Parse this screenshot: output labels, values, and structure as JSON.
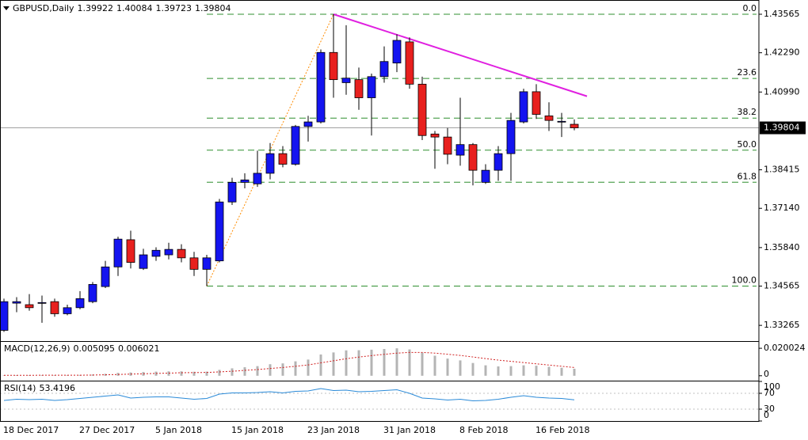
{
  "chart_data": [
    {
      "type": "candlestick",
      "title": "GBPUSD,Daily",
      "categories": [
        "18 Dec 2017",
        null,
        null,
        null,
        null,
        null,
        "27 Dec 2017",
        null,
        null,
        null,
        null,
        null,
        "5 Jan 2018",
        null,
        null,
        null,
        null,
        null,
        "15 Jan 2018",
        null,
        null,
        null,
        null,
        null,
        "23 Jan 2018",
        null,
        null,
        null,
        null,
        null,
        "31 Jan 2018",
        null,
        null,
        null,
        null,
        null,
        "8 Feb 2018",
        null,
        null,
        null,
        null,
        null,
        "16 Feb 2018",
        null,
        null,
        null
      ],
      "open": [
        1.331,
        1.34,
        1.3395,
        1.34,
        1.3405,
        1.3365,
        1.3385,
        1.3405,
        1.3455,
        1.352,
        1.361,
        1.3515,
        1.3555,
        1.356,
        1.3578,
        1.355,
        1.3512,
        1.354,
        1.3735,
        1.38,
        1.3795,
        1.383,
        1.3895,
        1.386,
        1.3985,
        1.4,
        1.423,
        1.413,
        1.414,
        1.408,
        1.415,
        1.4195,
        1.4265,
        1.4125,
        1.396,
        1.395,
        1.389,
        1.3925,
        1.38,
        1.384,
        1.3895,
        1.4,
        1.41,
        1.402,
        1.4,
        1.39922
      ],
      "high": [
        1.3415,
        1.342,
        1.343,
        1.3425,
        1.3415,
        1.3395,
        1.344,
        1.347,
        1.354,
        1.362,
        1.364,
        1.358,
        1.3585,
        1.36,
        1.3595,
        1.357,
        1.356,
        1.3745,
        1.3815,
        1.383,
        1.3905,
        1.393,
        1.392,
        1.399,
        1.402,
        1.424,
        1.43565,
        1.432,
        1.418,
        1.416,
        1.425,
        1.429,
        1.428,
        1.415,
        1.397,
        1.398,
        1.408,
        1.393,
        1.386,
        1.392,
        1.403,
        1.411,
        1.4125,
        1.4065,
        1.403,
        1.40084
      ],
      "low": [
        1.3305,
        1.337,
        1.3375,
        1.3335,
        1.3355,
        1.336,
        1.338,
        1.34,
        1.345,
        1.349,
        1.3515,
        1.351,
        1.354,
        1.3545,
        1.3535,
        1.349,
        1.34565,
        1.3535,
        1.3725,
        1.378,
        1.3785,
        1.381,
        1.385,
        1.3855,
        1.3935,
        1.3995,
        1.408,
        1.409,
        1.404,
        1.3955,
        1.413,
        1.4165,
        1.411,
        1.394,
        1.3845,
        1.386,
        1.3855,
        1.379,
        1.3795,
        1.3805,
        1.3805,
        1.3995,
        1.401,
        1.397,
        1.395,
        1.39723
      ],
      "close": [
        1.3405,
        1.3405,
        1.3385,
        1.3402,
        1.3365,
        1.3385,
        1.3415,
        1.3462,
        1.352,
        1.3612,
        1.3535,
        1.356,
        1.3575,
        1.3578,
        1.355,
        1.3512,
        1.355,
        1.3735,
        1.38,
        1.3808,
        1.383,
        1.3895,
        1.386,
        1.3985,
        1.4,
        1.423,
        1.414,
        1.4145,
        1.408,
        1.415,
        1.42,
        1.427,
        1.4125,
        1.3955,
        1.395,
        1.3893,
        1.3925,
        1.384,
        1.384,
        1.3895,
        1.4005,
        1.41,
        1.4025,
        1.4005,
        1.4002,
        1.39804
      ],
      "up_color": "#1414f0",
      "down_color": "#e8201e",
      "ylim": [
        1.32771,
        1.43984
      ],
      "yticks": [
        1.43565,
        {
          "value": 1.4229,
          "label": "1.42290"
        },
        {
          "value": 1.4099,
          "label": "1.40990"
        },
        1.38415,
        {
          "value": 1.3714,
          "label": "1.37140"
        },
        {
          "value": 1.3584,
          "label": "1.35840"
        },
        1.34565,
        1.33265
      ],
      "fibonacci": {
        "color": "#2f8f2f",
        "levels": [
          {
            "value": 1.43565,
            "label": "0.0"
          },
          {
            "value": 1.41441,
            "label": "23.6"
          },
          {
            "value": 1.40127,
            "label": "38.2"
          },
          {
            "value": 1.39065,
            "label": "50.0"
          },
          {
            "value": 1.38003,
            "label": "61.8"
          },
          {
            "value": 1.34565,
            "label": "100.0"
          }
        ]
      },
      "lines": [
        {
          "color": "#ff8c00",
          "style": "dotted",
          "x": [
            16,
            26
          ],
          "y": [
            1.34565,
            1.43565
          ]
        },
        {
          "color": "#e020e0",
          "style": "solid",
          "x": [
            26,
            46
          ],
          "y": [
            1.43565,
            1.4085
          ]
        }
      ]
    },
    {
      "type": "macd",
      "title": "MACD(12,26,9)",
      "series": [
        {
          "style": "bar",
          "color": "#b4b4b4",
          "values": [
            0.0003,
            0.0004,
            0.0004,
            0.0005,
            0.0004,
            0.0004,
            0.0006,
            0.0009,
            0.0014,
            0.0021,
            0.0024,
            0.0027,
            0.003,
            0.0032,
            0.0032,
            0.0029,
            0.003,
            0.0043,
            0.0054,
            0.0062,
            0.007,
            0.0084,
            0.009,
            0.0105,
            0.0118,
            0.0155,
            0.017,
            0.0185,
            0.0186,
            0.019,
            0.0195,
            0.02,
            0.0192,
            0.0168,
            0.0146,
            0.0125,
            0.0112,
            0.0093,
            0.0076,
            0.0068,
            0.007,
            0.0076,
            0.0073,
            0.0065,
            0.0058,
            0.005095
          ]
        },
        {
          "style": "dotted",
          "color": "#d02020",
          "values": [
            0.0003,
            0.0003,
            0.0003,
            0.0004,
            0.0004,
            0.0004,
            0.0004,
            0.0005,
            0.0007,
            0.0009,
            0.0012,
            0.0014,
            0.0017,
            0.0019,
            0.0022,
            0.0023,
            0.0024,
            0.0028,
            0.0033,
            0.0039,
            0.0045,
            0.0053,
            0.006,
            0.0069,
            0.0079,
            0.0094,
            0.0109,
            0.0124,
            0.0136,
            0.0147,
            0.0156,
            0.0165,
            0.017,
            0.017,
            0.0165,
            0.0157,
            0.0148,
            0.0137,
            0.0125,
            0.0114,
            0.0105,
            0.0096,
            0.0087,
            0.0078,
            0.0069,
            0.006021
          ]
        }
      ],
      "ylim": [
        -0.003,
        0.0247
      ],
      "yticks": [
        0.020024,
        0
      ]
    },
    {
      "type": "line",
      "title": "RSI(14)",
      "series": [
        {
          "style": "solid",
          "color": "#2a8ad8",
          "values": [
            52,
            55,
            54,
            55,
            52,
            54,
            57,
            60,
            63,
            66,
            58,
            60,
            61,
            61,
            58,
            55,
            57,
            68,
            71,
            71,
            72,
            74,
            71,
            75,
            76,
            82,
            77,
            78,
            74,
            75,
            77,
            79,
            70,
            58,
            56,
            53,
            55,
            51,
            52,
            55,
            60,
            64,
            60,
            58,
            57,
            53.4196
          ]
        }
      ],
      "ylim": [
        0,
        100
      ],
      "yticks": [
        100,
        70,
        30,
        0
      ]
    }
  ]
}
